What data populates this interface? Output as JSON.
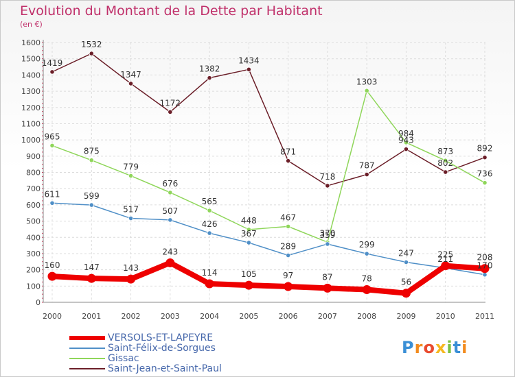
{
  "header": {
    "title": "Evolution du Montant de la Dette par Habitant",
    "unit": "(en €)"
  },
  "brand": {
    "text": "Proxiti"
  },
  "chart_data": {
    "type": "line",
    "x": [
      "2000",
      "2001",
      "2002",
      "2003",
      "2004",
      "2005",
      "2006",
      "2007",
      "2008",
      "2009",
      "2010",
      "2011"
    ],
    "ylim": [
      0,
      1600
    ],
    "yticks": [
      0,
      100,
      200,
      300,
      400,
      500,
      600,
      700,
      800,
      900,
      1000,
      1100,
      1200,
      1300,
      1400,
      1500,
      1600
    ],
    "grid": true,
    "legend_position": "bottom-left",
    "series": [
      {
        "name": "Saint-Jean-et-Saint-Paul",
        "color": "#6b1e28",
        "values": [
          1419,
          1532,
          1347,
          1172,
          1382,
          1434,
          871,
          718,
          787,
          943,
          802,
          892
        ]
      },
      {
        "name": "Gissac",
        "color": "#8fd65a",
        "values": [
          965,
          875,
          779,
          676,
          565,
          448,
          467,
          370,
          1303,
          984,
          873,
          736
        ]
      },
      {
        "name": "Saint-Félix-de-Sorgues",
        "color": "#4f8fc7",
        "values": [
          611,
          599,
          517,
          507,
          426,
          367,
          289,
          359,
          299,
          247,
          211,
          170
        ]
      },
      {
        "name": "VERSOLS-ET-LAPEYRE",
        "color": "#ee0000",
        "values": [
          160,
          147,
          143,
          243,
          114,
          105,
          97,
          87,
          78,
          56,
          225,
          208
        ]
      }
    ]
  },
  "legend": [
    {
      "label": "VERSOLS-ET-LAPEYRE",
      "color": "#ee0000"
    },
    {
      "label": "Saint-Félix-de-Sorgues",
      "color": "#4f8fc7"
    },
    {
      "label": "Gissac",
      "color": "#8fd65a"
    },
    {
      "label": "Saint-Jean-et-Saint-Paul",
      "color": "#6b1e28"
    }
  ]
}
